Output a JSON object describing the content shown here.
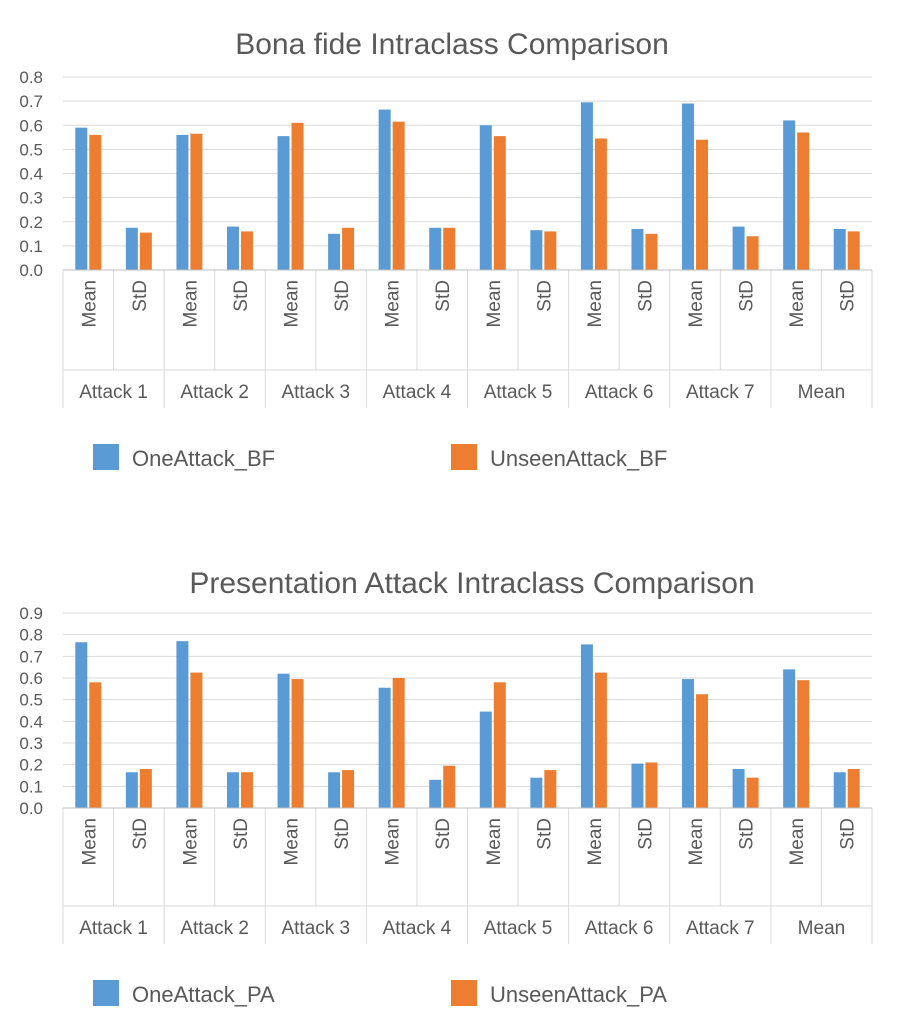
{
  "chart_data": [
    {
      "type": "bar",
      "title": "Bona fide Intraclass Comparison",
      "groups": [
        "Attack 1",
        "Attack 2",
        "Attack 3",
        "Attack 4",
        "Attack 5",
        "Attack 6",
        "Attack 7",
        "Mean"
      ],
      "subcategories": [
        "Mean",
        "StD"
      ],
      "ylim": [
        0,
        0.8
      ],
      "yticks": [
        "0.0",
        "0.1",
        "0.2",
        "0.3",
        "0.4",
        "0.5",
        "0.6",
        "0.7",
        "0.8"
      ],
      "grid": true,
      "legend_position": "bottom",
      "series": [
        {
          "name": "OneAttack_BF",
          "color": "#5b9bd5",
          "values": [
            0.59,
            0.175,
            0.56,
            0.18,
            0.555,
            0.15,
            0.665,
            0.175,
            0.6,
            0.165,
            0.695,
            0.17,
            0.69,
            0.18,
            0.62,
            0.17
          ]
        },
        {
          "name": "UnseenAttack_BF",
          "color": "#ed7d31",
          "values": [
            0.56,
            0.155,
            0.565,
            0.16,
            0.61,
            0.175,
            0.615,
            0.175,
            0.555,
            0.16,
            0.545,
            0.15,
            0.54,
            0.14,
            0.57,
            0.16
          ]
        }
      ]
    },
    {
      "type": "bar",
      "title": "Presentation Attack Intraclass Comparison",
      "groups": [
        "Attack 1",
        "Attack 2",
        "Attack 3",
        "Attack 4",
        "Attack 5",
        "Attack 6",
        "Attack 7",
        "Mean"
      ],
      "subcategories": [
        "Mean",
        "StD"
      ],
      "ylim": [
        0,
        0.9
      ],
      "yticks": [
        "0.0",
        "0.1",
        "0.2",
        "0.3",
        "0.4",
        "0.5",
        "0.6",
        "0.7",
        "0.8",
        "0.9"
      ],
      "grid": true,
      "legend_position": "bottom",
      "series": [
        {
          "name": "OneAttack_PA",
          "color": "#5b9bd5",
          "values": [
            0.765,
            0.165,
            0.77,
            0.165,
            0.62,
            0.165,
            0.555,
            0.13,
            0.445,
            0.14,
            0.755,
            0.205,
            0.595,
            0.18,
            0.64,
            0.165
          ]
        },
        {
          "name": "UnseenAttack_PA",
          "color": "#ed7d31",
          "values": [
            0.58,
            0.18,
            0.625,
            0.165,
            0.595,
            0.175,
            0.6,
            0.195,
            0.58,
            0.175,
            0.625,
            0.21,
            0.525,
            0.14,
            0.59,
            0.18
          ]
        }
      ]
    }
  ]
}
